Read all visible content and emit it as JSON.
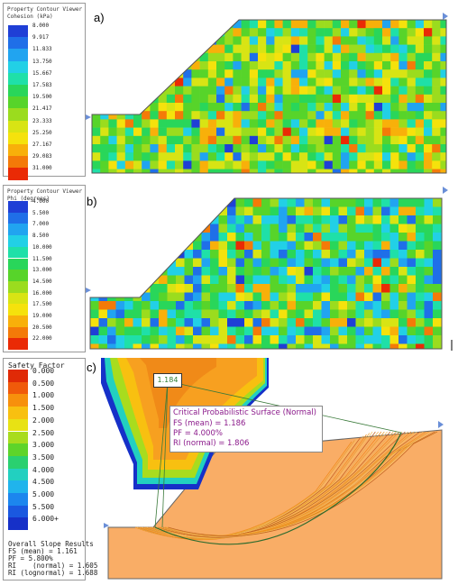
{
  "panel_a": {
    "tag": "a)",
    "legend_title_1": "Property Contour Viewer",
    "legend_title_2": "Cohesion (kPa)",
    "levels": [
      "8.000",
      "9.917",
      "11.833",
      "13.750",
      "15.667",
      "17.583",
      "19.500",
      "21.417",
      "23.333",
      "25.250",
      "27.167",
      "29.083",
      "31.000"
    ],
    "colors": [
      "#1f3fd6",
      "#1f6fe8",
      "#21a4f0",
      "#22d0e6",
      "#1fe0a8",
      "#29d65a",
      "#57d42a",
      "#9bdc1e",
      "#d8e414",
      "#f5e20c",
      "#f8b00a",
      "#f47a08",
      "#ea2a05"
    ]
  },
  "panel_b": {
    "tag": "b)",
    "legend_title_1": "Property Contour Viewer",
    "legend_title_2": "Phi (degrees)",
    "levels": [
      "4.000",
      "5.500",
      "7.000",
      "8.500",
      "10.000",
      "11.500",
      "13.000",
      "14.500",
      "16.000",
      "17.500",
      "19.000",
      "20.500",
      "22.000"
    ],
    "colors": [
      "#1f3fd6",
      "#1f6fe8",
      "#21a4f0",
      "#22d0e6",
      "#1fe0a8",
      "#29d65a",
      "#57d42a",
      "#9bdc1e",
      "#d8e414",
      "#f5e20c",
      "#f8b00a",
      "#f47a08",
      "#ea2a05"
    ]
  },
  "panel_c": {
    "tag": "c)",
    "legend_title": "Safety Factor",
    "levels": [
      "0.000",
      "0.500",
      "1.000",
      "1.500",
      "2.000",
      "2.500",
      "3.000",
      "3.500",
      "4.000",
      "4.500",
      "5.000",
      "5.500",
      "6.000+"
    ],
    "colors": [
      "#e02a06",
      "#f05a0a",
      "#f7900c",
      "#f8c010",
      "#e8e214",
      "#a8dc1e",
      "#5ed42a",
      "#2ad070",
      "#22d0c0",
      "#20b4ec",
      "#1c86ee",
      "#1a58e0",
      "#1630c8"
    ],
    "fs_tag": "1.184",
    "critical": {
      "title": "Critical Probabilistic Surface (Normal)",
      "fs": "FS (mean) = 1.186",
      "pf": "PF = 4.000%",
      "ri": "RI (normal) = 1.806"
    },
    "results": {
      "title": "Overall Slope Results",
      "fs": "FS (mean) = 1.161",
      "pf": "PF = 5.800%",
      "ri_normal": "RI    (normal) = 1.605",
      "ri_lognormal": "RI (lognormal) = 1.688"
    }
  }
}
